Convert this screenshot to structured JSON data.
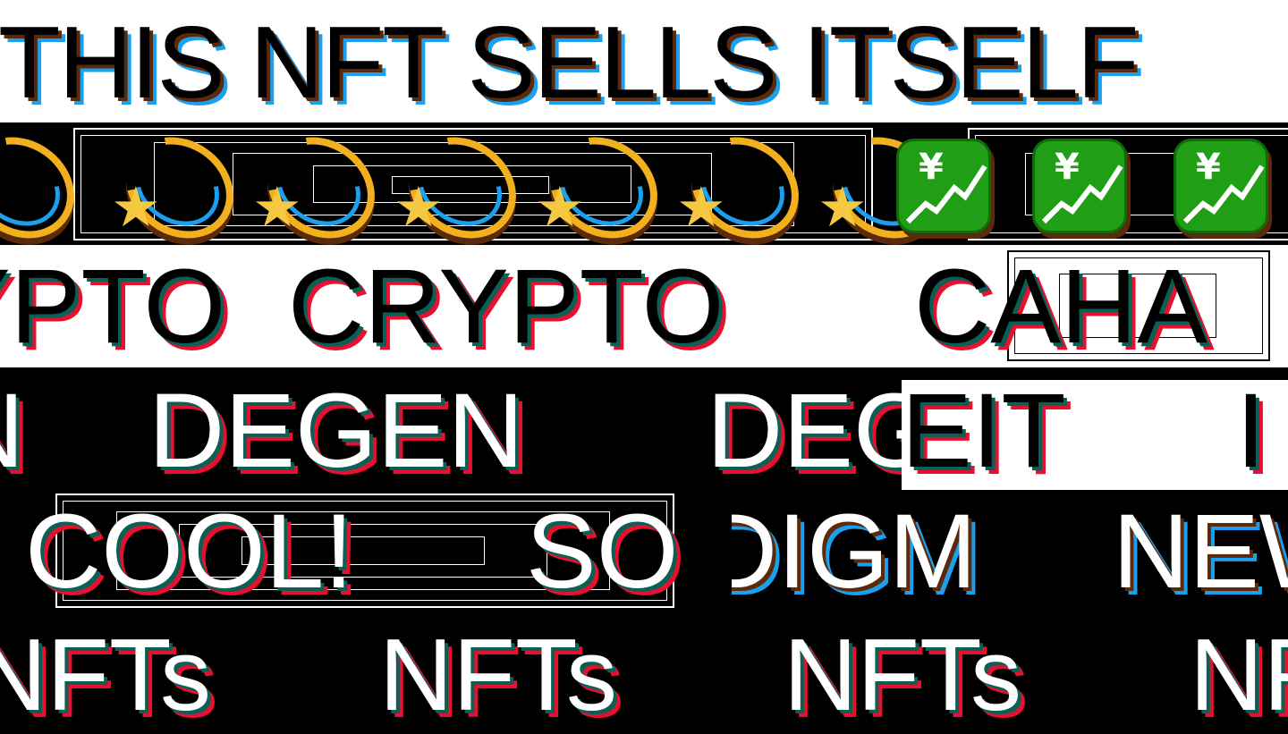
{
  "marquee": {
    "row1": "THIS NFT SELLS ITSELF",
    "row3": [
      "RYPTO",
      "CRYPTO",
      "CAHA"
    ],
    "row4": [
      "N",
      "DEGEN",
      "DEGEN",
      "EIT",
      "I"
    ],
    "row5": [
      "COOL!",
      "SO",
      "DIGM",
      "NEW"
    ],
    "row6": [
      "NFTs",
      "NFTs",
      "NFTs",
      "NFTs"
    ]
  },
  "icons": {
    "comet": "dizzy-comet-icon",
    "yen_chart": "chart-increasing-yen-icon",
    "yen_symbol": "¥"
  },
  "colors": {
    "black": "#000000",
    "white": "#ffffff",
    "brown_shadow": "#5a2a0a",
    "blue_shadow": "#1aa0ee",
    "teal_shadow": "#0b5f55",
    "red_shadow": "#e8102f",
    "gold": "#f2b01e",
    "green": "#1f9e16"
  }
}
